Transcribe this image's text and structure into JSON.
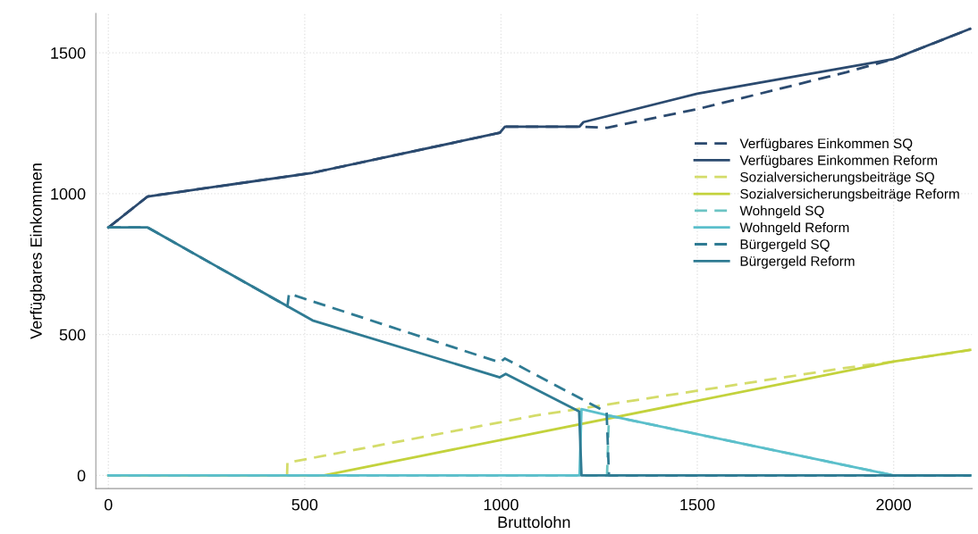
{
  "chart_data": {
    "type": "line",
    "xlabel": "Bruttolohn",
    "ylabel": "Verfügbares Einkommen",
    "xlim": [
      -32,
      2200
    ],
    "ylim": [
      -47,
      1640
    ],
    "xticks": [
      0,
      500,
      1000,
      1500,
      2000
    ],
    "yticks": [
      0,
      500,
      1000,
      1500
    ],
    "grid": true,
    "legend": "right",
    "line_style": "solid",
    "series": [
      {
        "name": "Verfügbares Einkommen SQ",
        "color": "#2b4a6f",
        "line_style": "dashed",
        "x": [
          0,
          100,
          520,
          997,
          1010,
          1200,
          1270,
          1500,
          1880,
          2000,
          2195
        ],
        "values": [
          880,
          990,
          1074,
          1216,
          1238,
          1238,
          1234,
          1300,
          1431,
          1478,
          1585
        ]
      },
      {
        "name": "Verfügbares Einkommen Reform",
        "color": "#2b4a6f",
        "x": [
          0,
          100,
          520,
          997,
          1010,
          1200,
          1210,
          1500,
          2000,
          2195
        ],
        "values": [
          880,
          990,
          1074,
          1216,
          1238,
          1238,
          1254,
          1355,
          1478,
          1585
        ]
      },
      {
        "name": "Sozialversicherungsbeiträge SQ",
        "color": "#d4dc6a",
        "line_style": "dashed",
        "x": [
          455,
          456,
          1087,
          1880,
          2000,
          2195
        ],
        "values": [
          0,
          45,
          212,
          382,
          404,
          445
        ]
      },
      {
        "name": "Sozialversicherungsbeiträge Reform",
        "color": "#c3d23c",
        "x": [
          0,
          549,
          1087,
          2000,
          2195
        ],
        "values": [
          0,
          0,
          150,
          404,
          445
        ]
      },
      {
        "name": "Wohngeld SQ",
        "color": "#6cc4c4",
        "line_style": "dashed",
        "x": [
          0,
          1270,
          1275,
          2000,
          2195
        ],
        "values": [
          0,
          0,
          212,
          0,
          0
        ]
      },
      {
        "name": "Wohngeld Reform",
        "color": "#5bbfcb",
        "x": [
          0,
          1200,
          1205,
          1275,
          2000,
          2195
        ],
        "values": [
          0,
          0,
          235,
          212,
          0,
          0
        ]
      },
      {
        "name": "Bürgergeld SQ",
        "color": "#2f7b93",
        "line_style": "dashed",
        "x": [
          0,
          100,
          456,
          460,
          997,
          1010,
          1269,
          1275,
          2195
        ],
        "values": [
          880,
          880,
          600,
          645,
          401,
          415,
          224,
          0,
          0
        ]
      },
      {
        "name": "Bürgergeld Reform",
        "color": "#2f7b93",
        "x": [
          0,
          100,
          520,
          997,
          1012,
          1199,
          1205,
          2195
        ],
        "values": [
          880,
          880,
          550,
          348,
          360,
          227,
          0,
          0
        ]
      }
    ]
  }
}
